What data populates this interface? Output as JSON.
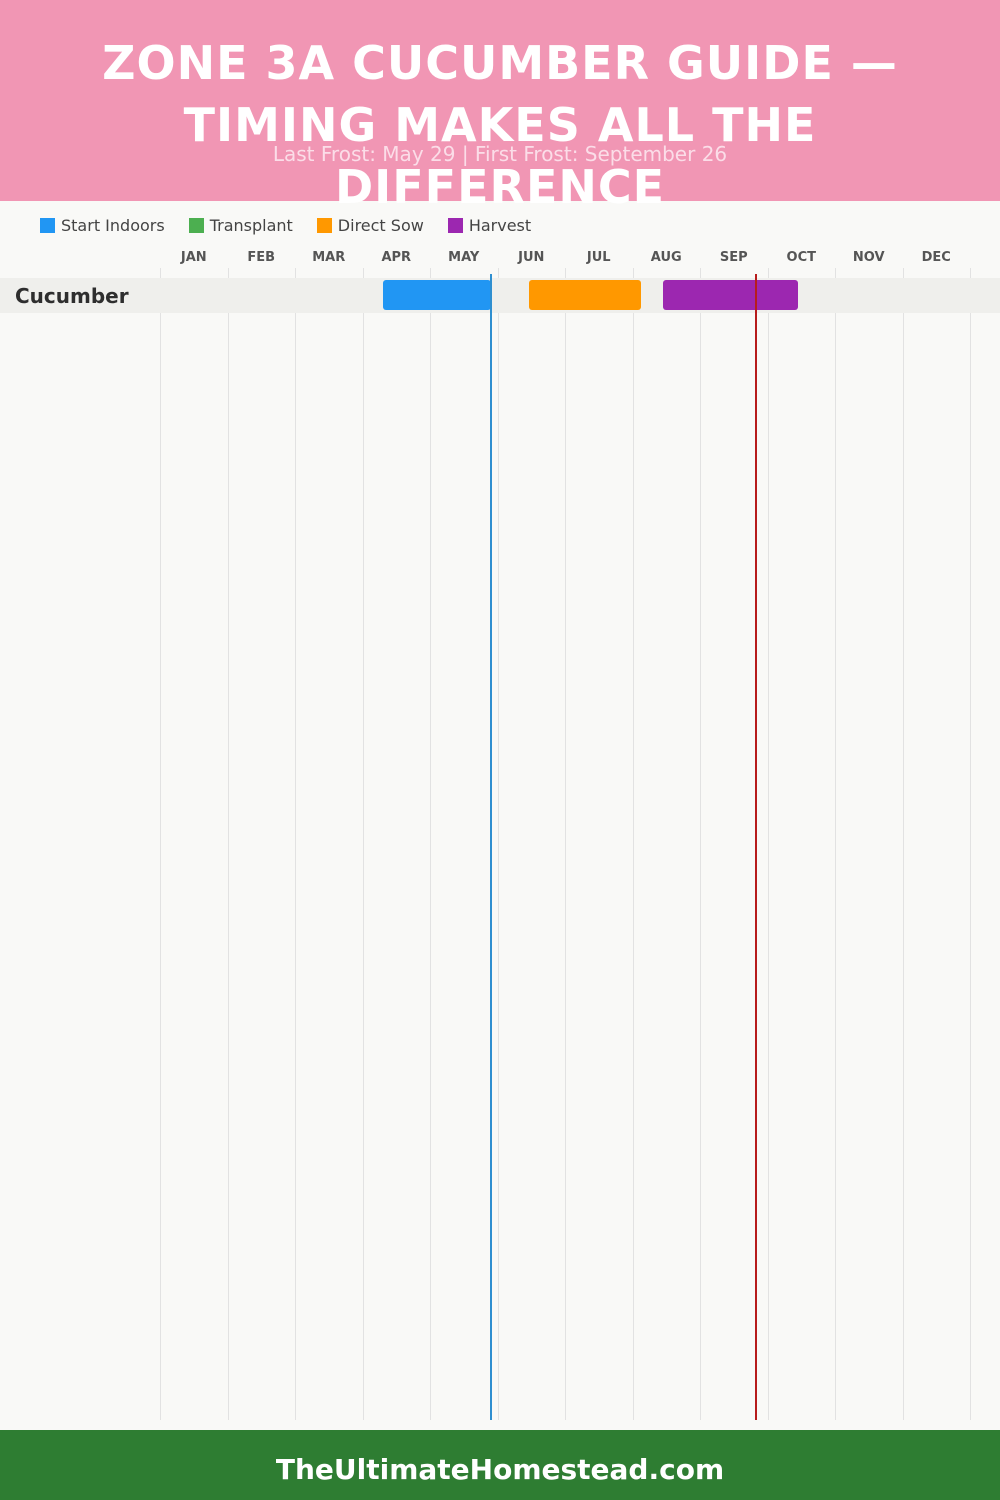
{
  "header": {
    "title": "ZONE 3A CUCUMBER GUIDE — TIMING MAKES ALL THE DIFFERENCE",
    "subtitle": "Last Frost: May 29 | First Frost: September 26",
    "background_color": "#f196b4"
  },
  "legend": [
    {
      "label": "Start Indoors",
      "color": "#2196f3"
    },
    {
      "label": "Transplant",
      "color": "#4caf50"
    },
    {
      "label": "Direct Sow",
      "color": "#ff9800"
    },
    {
      "label": "Harvest",
      "color": "#9c27b0"
    }
  ],
  "chart_data": {
    "type": "gantt",
    "x_axis": {
      "months": [
        "JAN",
        "FEB",
        "MAR",
        "APR",
        "MAY",
        "JUN",
        "JUL",
        "AUG",
        "SEP",
        "OCT",
        "NOV",
        "DEC"
      ],
      "range": [
        "Jan 1",
        "Dec 31"
      ]
    },
    "grid": true,
    "legend_placement": "top-left",
    "rows": [
      {
        "label": "Cucumber",
        "bars": [
          {
            "phase": "Start Indoors",
            "start": "Apr 10",
            "end": "May 29",
            "color": "#2196f3"
          },
          {
            "phase": "Direct Sow",
            "start": "Jun 15",
            "end": "Aug 5",
            "color": "#ff9800"
          },
          {
            "phase": "Harvest",
            "start": "Aug 15",
            "end": "Oct 15",
            "color": "#9c27b0"
          }
        ]
      }
    ],
    "reference_lines": [
      {
        "date": "May 29",
        "color": "#2f8fd0"
      },
      {
        "date": "Sep 26",
        "color": "#b71c1c"
      }
    ]
  },
  "footer": {
    "text": "TheUltimateHomestead.com",
    "background_color": "#2e7d32"
  }
}
